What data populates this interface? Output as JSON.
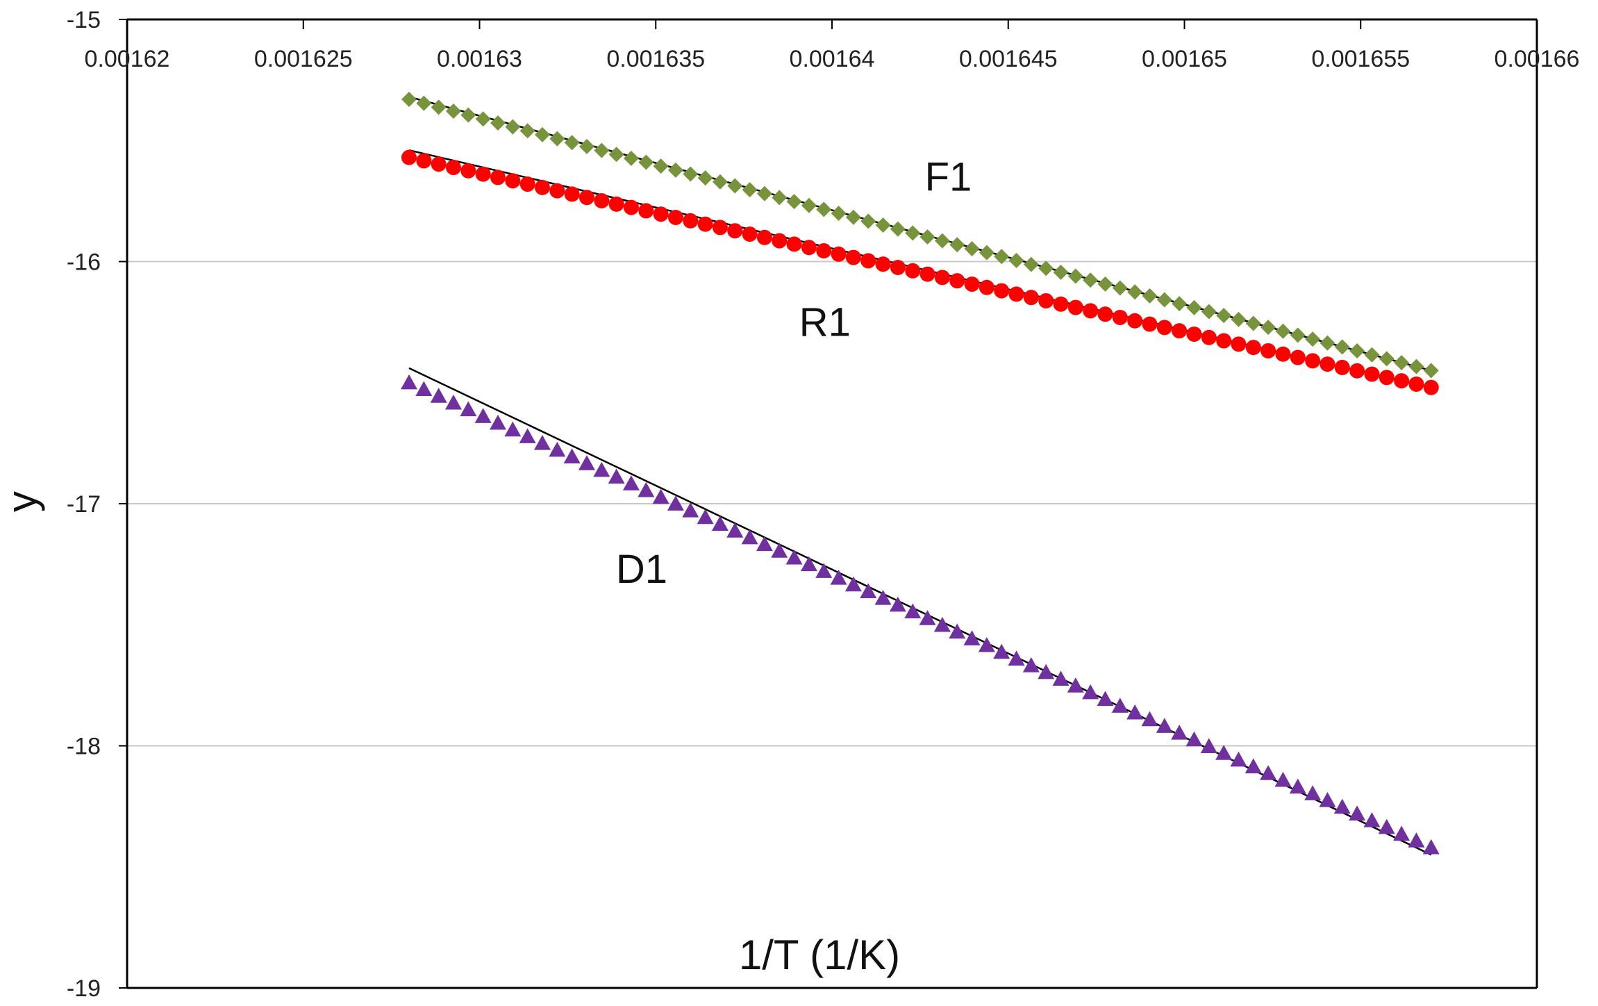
{
  "chart_data": {
    "type": "scatter",
    "title": "",
    "xlabel": "1/T (1/K)",
    "ylabel": "y",
    "xlim": [
      0.00162,
      0.00166
    ],
    "ylim": [
      -19,
      -15
    ],
    "x_ticks": [
      "0.00162",
      "0.001625",
      "0.00163",
      "0.001635",
      "0.00164",
      "0.001645",
      "0.00165",
      "0.001655",
      "0.00166"
    ],
    "y_ticks": [
      "-15",
      "-16",
      "-17",
      "-18",
      "-19"
    ],
    "grid": {
      "horizontal": true,
      "vertical": false
    },
    "x_axis_position": "top",
    "series": [
      {
        "name": "F1",
        "marker": "diamond",
        "color": "#77933c",
        "points": {
          "x_start": 0.001628,
          "x_end": 0.001657,
          "count": 70,
          "y_start": -15.33,
          "y_end": -16.45
        },
        "fit": {
          "x": [
            0.001628,
            0.001657
          ],
          "y": [
            -15.32,
            -16.45
          ]
        }
      },
      {
        "name": "R1",
        "marker": "circle",
        "color": "#ff0000",
        "points": {
          "x_start": 0.001628,
          "x_end": 0.001657,
          "count": 70,
          "y_start": -15.57,
          "y_end": -16.52
        },
        "fit": {
          "x": [
            0.001628,
            0.001657
          ],
          "y": [
            -15.54,
            -16.52
          ]
        }
      },
      {
        "name": "D1",
        "marker": "triangle",
        "color": "#7030a0",
        "points": {
          "x_start": 0.001628,
          "x_end": 0.001657,
          "count": 70,
          "y_start": -16.5,
          "y_end": -18.42
        },
        "fit": {
          "x": [
            0.001628,
            0.001657
          ],
          "y": [
            -16.44,
            -18.45
          ]
        }
      }
    ],
    "annotations": [
      {
        "text": "F1",
        "x": 0.0016433,
        "y": -15.65
      },
      {
        "text": "R1",
        "x": 0.0016398,
        "y": -16.25
      },
      {
        "text": "D1",
        "x": 0.0016346,
        "y": -17.27
      }
    ],
    "colors": {
      "axis": "#000000",
      "grid": "#c8c8c8",
      "fit_line": "#000000"
    }
  }
}
